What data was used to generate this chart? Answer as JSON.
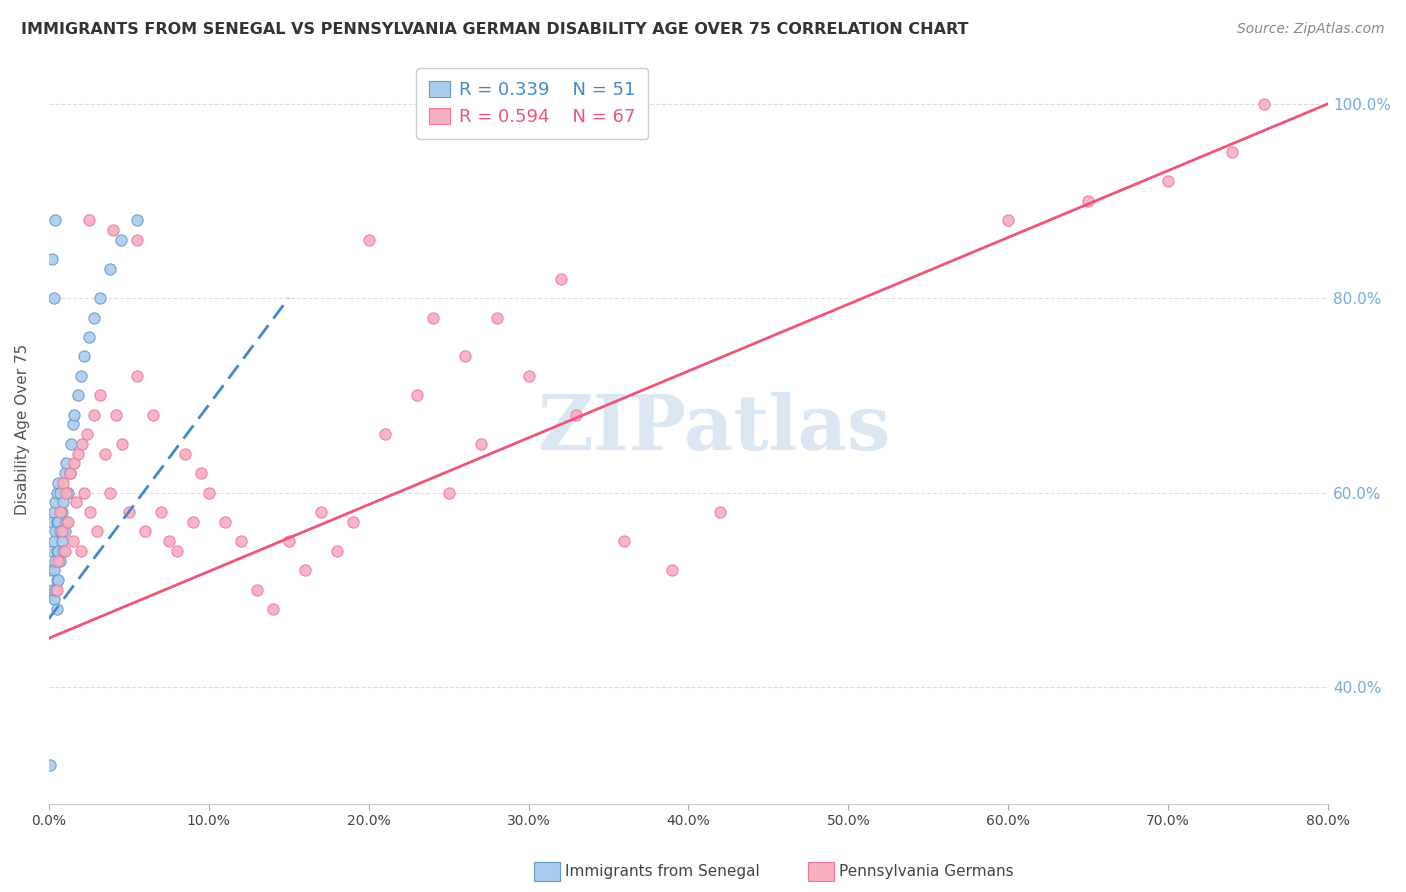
{
  "title": "IMMIGRANTS FROM SENEGAL VS PENNSYLVANIA GERMAN DISABILITY AGE OVER 75 CORRELATION CHART",
  "source": "Source: ZipAtlas.com",
  "ylabel": "Disability Age Over 75",
  "y_ticks": [
    "40.0%",
    "60.0%",
    "80.0%",
    "100.0%"
  ],
  "y_tick_vals": [
    0.4,
    0.6,
    0.8,
    1.0
  ],
  "x_tick_vals": [
    0.0,
    0.1,
    0.2,
    0.3,
    0.4,
    0.5,
    0.6,
    0.7,
    0.8
  ],
  "x_tick_labels": [
    "0.0%",
    "10.0%",
    "20.0%",
    "30.0%",
    "40.0%",
    "50.0%",
    "60.0%",
    "70.0%",
    "80.0%"
  ],
  "x_range": [
    0.0,
    0.8
  ],
  "y_range": [
    0.28,
    1.05
  ],
  "legend_blue_r": "R = 0.339",
  "legend_blue_n": "N = 51",
  "legend_pink_r": "R = 0.594",
  "legend_pink_n": "N = 67",
  "blue_color": "#aaccee",
  "pink_color": "#f8b0c0",
  "blue_edge_color": "#6699cc",
  "pink_edge_color": "#ee7799",
  "blue_line_color": "#4488cc",
  "pink_line_color": "#ee5577",
  "watermark_color": "#ccddef",
  "title_color": "#333333",
  "source_color": "#888888",
  "grid_color": "#dddddd",
  "right_tick_color": "#77aadd",
  "blue_points_x": [
    0.001,
    0.001,
    0.002,
    0.002,
    0.002,
    0.003,
    0.003,
    0.003,
    0.003,
    0.004,
    0.004,
    0.004,
    0.004,
    0.005,
    0.005,
    0.005,
    0.005,
    0.005,
    0.006,
    0.006,
    0.006,
    0.006,
    0.007,
    0.007,
    0.007,
    0.008,
    0.008,
    0.009,
    0.009,
    0.01,
    0.01,
    0.011,
    0.011,
    0.012,
    0.013,
    0.014,
    0.015,
    0.016,
    0.018,
    0.02,
    0.022,
    0.025,
    0.028,
    0.032,
    0.038,
    0.045,
    0.055,
    0.002,
    0.003,
    0.004,
    0.001
  ],
  "blue_points_y": [
    0.495,
    0.52,
    0.5,
    0.54,
    0.57,
    0.49,
    0.52,
    0.55,
    0.58,
    0.5,
    0.53,
    0.56,
    0.59,
    0.48,
    0.51,
    0.54,
    0.57,
    0.6,
    0.51,
    0.54,
    0.57,
    0.61,
    0.53,
    0.56,
    0.6,
    0.55,
    0.58,
    0.54,
    0.59,
    0.56,
    0.62,
    0.57,
    0.63,
    0.6,
    0.62,
    0.65,
    0.67,
    0.68,
    0.7,
    0.72,
    0.74,
    0.76,
    0.78,
    0.8,
    0.83,
    0.86,
    0.88,
    0.84,
    0.8,
    0.88,
    0.32
  ],
  "pink_points_x": [
    0.005,
    0.006,
    0.007,
    0.008,
    0.009,
    0.01,
    0.011,
    0.012,
    0.013,
    0.015,
    0.016,
    0.017,
    0.018,
    0.02,
    0.021,
    0.022,
    0.024,
    0.026,
    0.028,
    0.03,
    0.032,
    0.035,
    0.038,
    0.042,
    0.046,
    0.05,
    0.055,
    0.06,
    0.065,
    0.07,
    0.075,
    0.08,
    0.085,
    0.09,
    0.095,
    0.1,
    0.11,
    0.12,
    0.13,
    0.14,
    0.15,
    0.16,
    0.17,
    0.18,
    0.19,
    0.21,
    0.23,
    0.25,
    0.27,
    0.3,
    0.33,
    0.36,
    0.39,
    0.42,
    0.2,
    0.24,
    0.26,
    0.28,
    0.32,
    0.025,
    0.04,
    0.055,
    0.6,
    0.65,
    0.7,
    0.74,
    0.76
  ],
  "pink_points_y": [
    0.5,
    0.53,
    0.58,
    0.56,
    0.61,
    0.54,
    0.6,
    0.57,
    0.62,
    0.55,
    0.63,
    0.59,
    0.64,
    0.54,
    0.65,
    0.6,
    0.66,
    0.58,
    0.68,
    0.56,
    0.7,
    0.64,
    0.6,
    0.68,
    0.65,
    0.58,
    0.72,
    0.56,
    0.68,
    0.58,
    0.55,
    0.54,
    0.64,
    0.57,
    0.62,
    0.6,
    0.57,
    0.55,
    0.5,
    0.48,
    0.55,
    0.52,
    0.58,
    0.54,
    0.57,
    0.66,
    0.7,
    0.6,
    0.65,
    0.72,
    0.68,
    0.55,
    0.52,
    0.58,
    0.86,
    0.78,
    0.74,
    0.78,
    0.82,
    0.88,
    0.87,
    0.86,
    0.88,
    0.9,
    0.92,
    0.95,
    1.0
  ],
  "blue_trend_x": [
    0.0,
    0.15
  ],
  "blue_trend_y": [
    0.47,
    0.8
  ],
  "pink_trend_x": [
    0.0,
    0.8
  ],
  "pink_trend_y": [
    0.45,
    1.0
  ]
}
